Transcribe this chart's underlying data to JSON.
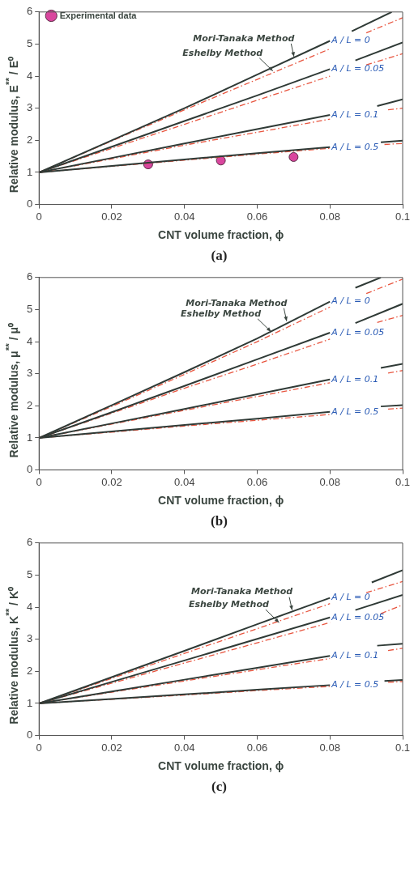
{
  "chart_data": [
    {
      "type": "line",
      "title": "(a)",
      "xlabel": "CNT volume fraction, ϕ",
      "ylabel": "Relative modulus, E$^{**}$ / E⁰",
      "xlim": [
        0,
        0.1
      ],
      "ylim": [
        0,
        6
      ],
      "xticks": [
        0,
        0.02,
        0.04,
        0.06,
        0.08,
        0.1
      ],
      "yticks": [
        0,
        1,
        2,
        3,
        4,
        5,
        6
      ],
      "grid": false,
      "legend": "top left",
      "annotations": [
        {
          "text": "Mori-Tanaka Method",
          "x": 0.0701,
          "y": 4.61
        },
        {
          "text": "Eshelby Method",
          "x": 0.0643,
          "y": 4.16
        }
      ],
      "series": [
        {
          "type": "line",
          "name": "A / L = 0",
          "color": "#2f3a36",
          "line_style": "solid",
          "x": [
            0,
            0.02,
            0.04,
            0.06,
            0.08,
            0.083,
            0.086,
            0.097
          ],
          "values": [
            1,
            2.0,
            3.0,
            4.05,
            5.1,
            null,
            5.4,
            6.0
          ]
        },
        {
          "type": "line",
          "color": "#e8553f",
          "line_style": "dashed",
          "x": [
            0,
            0.02,
            0.04,
            0.06,
            0.08,
            0.083,
            0.09,
            0.1
          ],
          "values": [
            1,
            1.98,
            2.95,
            3.9,
            4.85,
            null,
            5.35,
            5.82
          ]
        },
        {
          "type": "line",
          "name": "A / L = 0.05",
          "color": "#2f3a36",
          "line_style": "solid",
          "x": [
            0,
            0.02,
            0.04,
            0.06,
            0.08,
            0.083,
            0.087,
            0.1
          ],
          "values": [
            1,
            1.8,
            2.6,
            3.4,
            4.22,
            null,
            4.49,
            5.05
          ]
        },
        {
          "type": "line",
          "color": "#e8553f",
          "line_style": "dashed",
          "x": [
            0,
            0.02,
            0.04,
            0.06,
            0.08,
            0.083,
            0.09,
            0.1
          ],
          "values": [
            1,
            1.75,
            2.5,
            3.25,
            4.0,
            null,
            4.35,
            4.7
          ]
        },
        {
          "type": "line",
          "name": "A / L = 0.1",
          "color": "#2f3a36",
          "line_style": "solid",
          "x": [
            0,
            0.02,
            0.04,
            0.06,
            0.08,
            0.083,
            0.093,
            0.1
          ],
          "values": [
            1,
            1.45,
            1.9,
            2.35,
            2.79,
            null,
            3.07,
            3.28
          ]
        },
        {
          "type": "line",
          "color": "#e8553f",
          "line_style": "dashed",
          "x": [
            0,
            0.02,
            0.04,
            0.06,
            0.08,
            0.083,
            0.096,
            0.1
          ],
          "values": [
            1,
            1.42,
            1.85,
            2.25,
            2.66,
            null,
            2.95,
            3.0
          ]
        },
        {
          "type": "line",
          "name": "A / L = 0.5",
          "color": "#2f3a36",
          "line_style": "solid",
          "x": [
            0,
            0.02,
            0.04,
            0.06,
            0.08,
            0.083,
            0.094,
            0.1
          ],
          "values": [
            1,
            1.2,
            1.4,
            1.6,
            1.79,
            null,
            1.94,
            1.99
          ]
        },
        {
          "type": "line",
          "color": "#e8553f",
          "line_style": "dashed",
          "x": [
            0,
            0.02,
            0.04,
            0.06,
            0.08,
            0.083,
            0.095,
            0.1
          ],
          "values": [
            1,
            1.19,
            1.38,
            1.57,
            1.75,
            null,
            1.87,
            1.9
          ]
        },
        {
          "type": "scatter",
          "name": "Experimental data",
          "color": "#d9469e",
          "marker": "circle",
          "x": [
            0.03,
            0.05,
            0.07
          ],
          "values": [
            1.25,
            1.37,
            1.48
          ]
        }
      ]
    },
    {
      "type": "line",
      "title": "(b)",
      "xlabel": "CNT volume fraction, ϕ",
      "ylabel": "Relative modulus, μ$^{**}$ / μ⁰",
      "xlim": [
        0,
        0.1
      ],
      "ylim": [
        0,
        6
      ],
      "xticks": [
        0,
        0.02,
        0.04,
        0.06,
        0.08,
        0.1
      ],
      "yticks": [
        0,
        1,
        2,
        3,
        4,
        5,
        6
      ],
      "grid": false,
      "annotations": [
        {
          "text": "Mori-Tanaka Method",
          "x": 0.0681,
          "y": 4.64
        },
        {
          "text": "Eshelby Method",
          "x": 0.0638,
          "y": 4.31
        }
      ],
      "series": [
        {
          "type": "line",
          "name": "A / L = 0",
          "color": "#2f3a36",
          "line_style": "solid",
          "x": [
            0,
            0.02,
            0.04,
            0.06,
            0.08,
            0.083,
            0.087,
            0.094
          ],
          "values": [
            1,
            2.02,
            3.05,
            4.1,
            5.25,
            null,
            5.68,
            6.0
          ]
        },
        {
          "type": "line",
          "color": "#e8553f",
          "line_style": "dashed",
          "x": [
            0,
            0.02,
            0.04,
            0.06,
            0.08,
            0.083,
            0.09,
            0.1
          ],
          "values": [
            1,
            1.98,
            2.98,
            4.0,
            5.08,
            null,
            5.5,
            5.95
          ]
        },
        {
          "type": "line",
          "name": "A / L = 0.05",
          "color": "#2f3a36",
          "line_style": "solid",
          "x": [
            0,
            0.02,
            0.04,
            0.06,
            0.08,
            0.083,
            0.087,
            0.1
          ],
          "values": [
            1,
            1.8,
            2.62,
            3.45,
            4.28,
            null,
            4.58,
            5.18
          ]
        },
        {
          "type": "line",
          "color": "#e8553f",
          "line_style": "dashed",
          "x": [
            0,
            0.02,
            0.04,
            0.06,
            0.08,
            0.083,
            0.093,
            0.1
          ],
          "values": [
            1,
            1.77,
            2.55,
            3.3,
            4.08,
            null,
            4.6,
            4.82
          ]
        },
        {
          "type": "line",
          "name": "A / L = 0.1",
          "color": "#2f3a36",
          "line_style": "solid",
          "x": [
            0,
            0.02,
            0.04,
            0.06,
            0.08,
            0.083,
            0.094,
            0.1
          ],
          "values": [
            1,
            1.45,
            1.9,
            2.36,
            2.82,
            null,
            3.18,
            3.31
          ]
        },
        {
          "type": "line",
          "color": "#e8553f",
          "line_style": "dashed",
          "x": [
            0,
            0.02,
            0.04,
            0.06,
            0.08,
            0.083,
            0.096,
            0.1
          ],
          "values": [
            1,
            1.43,
            1.86,
            2.29,
            2.72,
            null,
            3.02,
            3.1
          ]
        },
        {
          "type": "line",
          "name": "A / L = 0.5",
          "color": "#2f3a36",
          "line_style": "solid",
          "x": [
            0,
            0.02,
            0.04,
            0.06,
            0.08,
            0.083,
            0.094,
            0.1
          ],
          "values": [
            1,
            1.2,
            1.4,
            1.6,
            1.81,
            null,
            1.98,
            2.02
          ]
        },
        {
          "type": "line",
          "color": "#e8553f",
          "line_style": "dashed",
          "x": [
            0,
            0.02,
            0.04,
            0.06,
            0.08,
            0.083,
            0.096,
            0.1
          ],
          "values": [
            1,
            1.18,
            1.37,
            1.55,
            1.73,
            null,
            1.9,
            1.93
          ]
        }
      ]
    },
    {
      "type": "line",
      "title": "(c)",
      "xlabel": "CNT volume fraction, ϕ",
      "ylabel": "Relative modulus, K$^{**}$ / K⁰",
      "xlim": [
        0,
        0.1
      ],
      "ylim": [
        0,
        6
      ],
      "xticks": [
        0,
        0.02,
        0.04,
        0.06,
        0.08,
        0.1
      ],
      "yticks": [
        0,
        1,
        2,
        3,
        4,
        5,
        6
      ],
      "grid": false,
      "annotations": [
        {
          "text": "Mori-Tanaka Method",
          "x": 0.0696,
          "y": 3.91
        },
        {
          "text": "Eshelby Method",
          "x": 0.066,
          "y": 3.52
        }
      ],
      "series": [
        {
          "type": "line",
          "name": "A / L = 0",
          "color": "#2f3a36",
          "line_style": "solid",
          "x": [
            0,
            0.02,
            0.04,
            0.06,
            0.08,
            0.083,
            0.0915,
            0.1
          ],
          "values": [
            1,
            1.82,
            2.64,
            3.47,
            4.29,
            null,
            4.77,
            5.15
          ]
        },
        {
          "type": "line",
          "color": "#e8553f",
          "line_style": "dashed",
          "x": [
            0,
            0.02,
            0.04,
            0.06,
            0.08,
            0.083,
            0.09,
            0.1
          ],
          "values": [
            1,
            1.78,
            2.56,
            3.33,
            4.11,
            null,
            4.45,
            4.8
          ]
        },
        {
          "type": "line",
          "name": "A / L = 0.05",
          "color": "#2f3a36",
          "line_style": "solid",
          "x": [
            0,
            0.02,
            0.04,
            0.06,
            0.08,
            0.083,
            0.087,
            0.1
          ],
          "values": [
            1,
            1.67,
            2.34,
            3.01,
            3.68,
            null,
            3.91,
            4.38
          ]
        },
        {
          "type": "line",
          "color": "#e8553f",
          "line_style": "dashed",
          "x": [
            0,
            0.02,
            0.04,
            0.06,
            0.08,
            0.083,
            0.094,
            0.1
          ],
          "values": [
            1,
            1.63,
            2.26,
            2.89,
            3.52,
            null,
            3.8,
            4.07
          ]
        },
        {
          "type": "line",
          "name": "A / L = 0.1",
          "color": "#2f3a36",
          "line_style": "solid",
          "x": [
            0,
            0.02,
            0.04,
            0.06,
            0.08,
            0.083,
            0.093,
            0.1
          ],
          "values": [
            1,
            1.37,
            1.74,
            2.11,
            2.48,
            null,
            2.8,
            2.86
          ]
        },
        {
          "type": "line",
          "color": "#e8553f",
          "line_style": "dashed",
          "x": [
            0,
            0.02,
            0.04,
            0.06,
            0.08,
            0.083,
            0.096,
            0.1
          ],
          "values": [
            1,
            1.35,
            1.7,
            2.05,
            2.4,
            null,
            2.65,
            2.72
          ]
        },
        {
          "type": "line",
          "name": "A / L = 0.5",
          "color": "#2f3a36",
          "line_style": "solid",
          "x": [
            0,
            0.02,
            0.04,
            0.06,
            0.08,
            0.083,
            0.095,
            0.1
          ],
          "values": [
            1,
            1.14,
            1.28,
            1.43,
            1.57,
            null,
            1.7,
            1.73
          ]
        },
        {
          "type": "line",
          "color": "#e8553f",
          "line_style": "dashed",
          "x": [
            0,
            0.02,
            0.04,
            0.06,
            0.08,
            0.083,
            0.096,
            0.1
          ],
          "values": [
            1,
            1.13,
            1.26,
            1.4,
            1.53,
            null,
            1.66,
            1.68
          ]
        }
      ]
    }
  ]
}
